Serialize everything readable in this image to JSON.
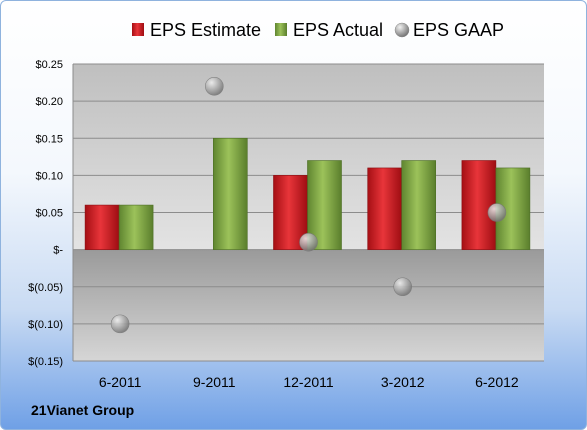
{
  "company": "21Vianet Group",
  "colors": {
    "estimate": "#d9262b",
    "actual": "#86ad48",
    "gaap": "#a8a8a8"
  },
  "chart_data": {
    "type": "bar",
    "categories": [
      "6-2011",
      "9-2011",
      "12-2011",
      "3-2012",
      "6-2012"
    ],
    "series": [
      {
        "name": "EPS Estimate",
        "type": "bar",
        "values": [
          0.06,
          null,
          0.1,
          0.11,
          0.12
        ]
      },
      {
        "name": "EPS Actual",
        "type": "bar",
        "values": [
          0.06,
          0.15,
          0.12,
          0.12,
          0.11
        ]
      },
      {
        "name": "EPS GAAP",
        "type": "scatter",
        "values": [
          -0.1,
          0.22,
          0.01,
          -0.05,
          0.05
        ]
      }
    ],
    "ylim": [
      -0.15,
      0.25
    ],
    "yticks": [
      0.25,
      0.2,
      0.15,
      0.1,
      0.05,
      0,
      -0.05,
      -0.1,
      -0.15
    ],
    "ytick_labels": [
      "$0.25",
      "$0.20",
      "$0.15",
      "$0.10",
      "$0.05",
      "$-",
      "$(0.05)",
      "$(0.10)",
      "$(0.15)"
    ],
    "legend_position": "top",
    "grid": true
  }
}
